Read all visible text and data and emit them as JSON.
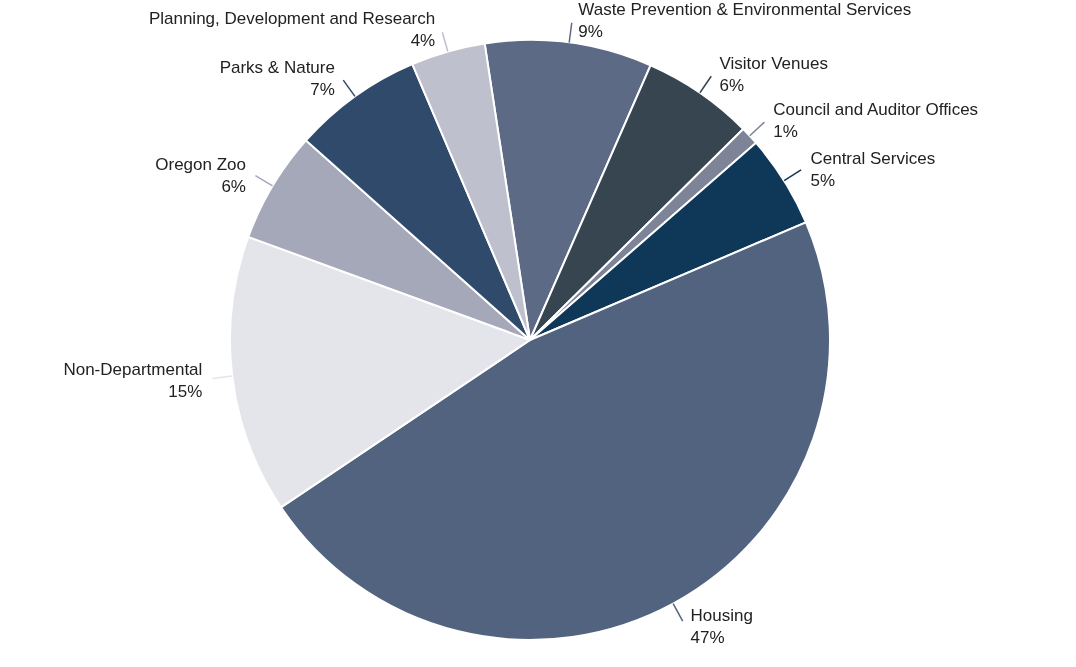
{
  "chart_data": {
    "type": "pie",
    "categories": [
      "Waste Prevention & Environmental Services",
      "Visitor Venues",
      "Council and Auditor Offices",
      "Central Services",
      "Housing",
      "Non-Departmental",
      "Oregon Zoo",
      "Parks & Nature",
      "Planning, Development and Research"
    ],
    "values": [
      9,
      6,
      1,
      5,
      47,
      15,
      6,
      7,
      4
    ],
    "value_labels": [
      "9%",
      "6%",
      "1%",
      "5%",
      "47%",
      "15%",
      "6%",
      "7%",
      "4%"
    ],
    "colors": [
      "#5d6a85",
      "#36454f",
      "#7d8497",
      "#0f3758",
      "#52637f",
      "#e4e5ea",
      "#a5a8b9",
      "#2f4a6a",
      "#bfc0ce"
    ],
    "legend": false
  }
}
